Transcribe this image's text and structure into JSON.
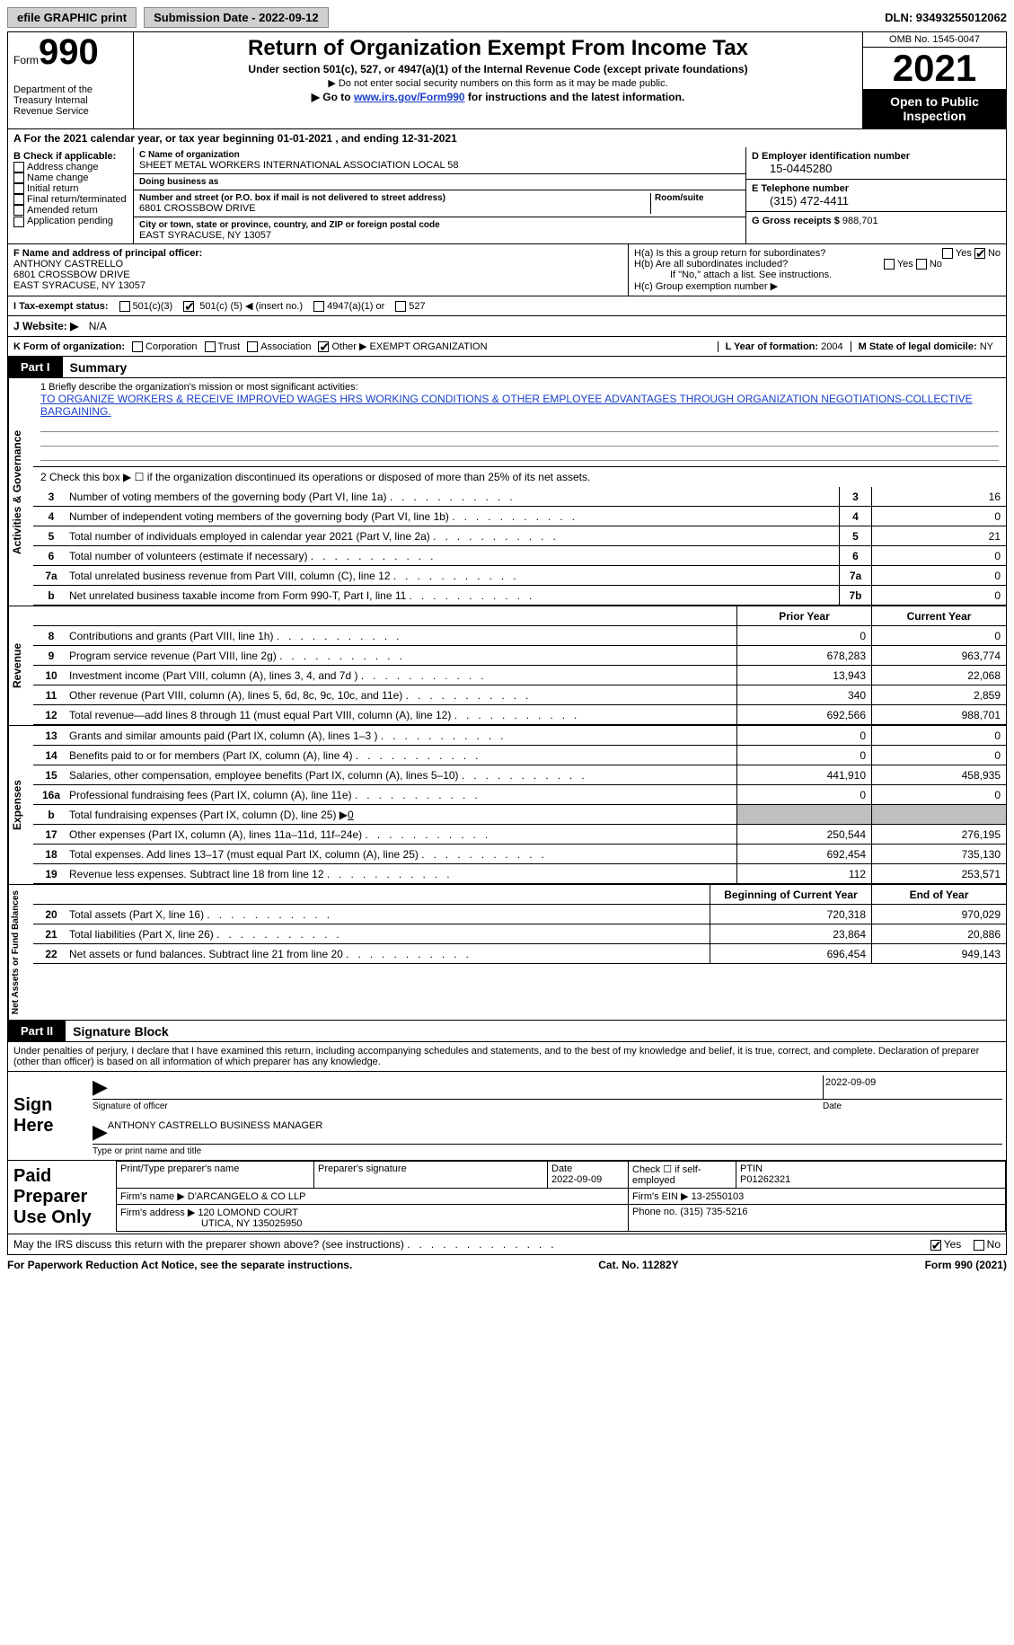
{
  "topbar": {
    "efile": "efile GRAPHIC print",
    "submission_label": "Submission Date - 2022-09-12",
    "dln": "DLN: 93493255012062"
  },
  "header": {
    "form_label": "Form",
    "form_num": "990",
    "dept": "Department of the Treasury\nInternal Revenue Service",
    "title": "Return of Organization Exempt From Income Tax",
    "sub": "Under section 501(c), 527, or 4947(a)(1) of the Internal Revenue Code (except private foundations)",
    "nosnn": "▶ Do not enter social security numbers on this form as it may be made public.",
    "goto_pre": "▶ Go to ",
    "goto_link": "www.irs.gov/Form990",
    "goto_post": " for instructions and the latest information.",
    "omb": "OMB No. 1545-0047",
    "year": "2021",
    "open": "Open to Public Inspection"
  },
  "row_a": "A For the 2021 calendar year, or tax year beginning 01-01-2021    , and ending 12-31-2021",
  "col_b": {
    "label": "B Check if applicable:",
    "opts": [
      "Address change",
      "Name change",
      "Initial return",
      "Final return/terminated",
      "Amended return",
      "Application pending"
    ]
  },
  "col_c": {
    "name_lbl": "C Name of organization",
    "name": "SHEET METAL WORKERS INTERNATIONAL ASSOCIATION LOCAL 58",
    "dba_lbl": "Doing business as",
    "dba": "",
    "addr_lbl": "Number and street (or P.O. box if mail is not delivered to street address)",
    "room_lbl": "Room/suite",
    "addr": "6801 CROSSBOW DRIVE",
    "city_lbl": "City or town, state or province, country, and ZIP or foreign postal code",
    "city": "EAST SYRACUSE, NY  13057"
  },
  "col_d": {
    "ein_lbl": "D Employer identification number",
    "ein": "15-0445280",
    "tel_lbl": "E Telephone number",
    "tel": "(315) 472-4411",
    "gross_lbl": "G Gross receipts $",
    "gross": "988,701"
  },
  "f": {
    "label": "F Name and address of principal officer:",
    "name": "ANTHONY CASTRELLO",
    "addr1": "6801 CROSSBOW DRIVE",
    "addr2": "EAST SYRACUSE, NY  13057"
  },
  "h": {
    "a_lbl": "H(a)  Is this a group return for subordinates?",
    "a_yes": "Yes",
    "a_no": "No",
    "b_lbl": "H(b)  Are all subordinates included?",
    "b_yes": "Yes",
    "b_no": "No",
    "b_note": "If \"No,\" attach a list. See instructions.",
    "c_lbl": "H(c)  Group exemption number ▶"
  },
  "status": {
    "label": "I   Tax-exempt status:",
    "c3": "501(c)(3)",
    "c5_pre": "501(c) (",
    "c5_num": "5",
    "c5_post": ") ◀ (insert no.)",
    "a1": "4947(a)(1) or",
    "s527": "527"
  },
  "j": {
    "label": "J   Website: ▶",
    "val": "N/A"
  },
  "k": {
    "label": "K Form of organization:",
    "corp": "Corporation",
    "trust": "Trust",
    "assoc": "Association",
    "other": "Other ▶",
    "other_val": "EXEMPT ORGANIZATION",
    "l_lbl": "L Year of formation:",
    "l_val": "2004",
    "m_lbl": "M State of legal domicile:",
    "m_val": "NY"
  },
  "parts": {
    "p1_tab": "Part I",
    "p1_title": "Summary",
    "p2_tab": "Part II",
    "p2_title": "Signature Block"
  },
  "vtabs": {
    "ag": "Activities & Governance",
    "rev": "Revenue",
    "exp": "Expenses",
    "net": "Net Assets or\nFund Balances"
  },
  "mission": {
    "label": "1   Briefly describe the organization's mission or most significant activities:",
    "text": "TO ORGANIZE WORKERS & RECEIVE IMPROVED WAGES HRS WORKING CONDITIONS & OTHER EMPLOYEE ADVANTAGES THROUGH ORGANIZATION NEGOTIATIONS-COLLECTIVE BARGAINING."
  },
  "line2": "2   Check this box ▶ ☐ if the organization discontinued its operations or disposed of more than 25% of its net assets.",
  "lines_ag": [
    {
      "n": "3",
      "d": "Number of voting members of the governing body (Part VI, line 1a)",
      "box": "3",
      "v": "16"
    },
    {
      "n": "4",
      "d": "Number of independent voting members of the governing body (Part VI, line 1b)",
      "box": "4",
      "v": "0"
    },
    {
      "n": "5",
      "d": "Total number of individuals employed in calendar year 2021 (Part V, line 2a)",
      "box": "5",
      "v": "21"
    },
    {
      "n": "6",
      "d": "Total number of volunteers (estimate if necessary)",
      "box": "6",
      "v": "0"
    },
    {
      "n": "7a",
      "d": "Total unrelated business revenue from Part VIII, column (C), line 12",
      "box": "7a",
      "v": "0"
    },
    {
      "n": " b",
      "d": "Net unrelated business taxable income from Form 990-T, Part I, line 11",
      "box": "7b",
      "v": "0"
    }
  ],
  "hdr_pycy": {
    "py": "Prior Year",
    "cy": "Current Year"
  },
  "lines_rev": [
    {
      "n": "8",
      "d": "Contributions and grants (Part VIII, line 1h)",
      "py": "0",
      "cy": "0"
    },
    {
      "n": "9",
      "d": "Program service revenue (Part VIII, line 2g)",
      "py": "678,283",
      "cy": "963,774"
    },
    {
      "n": "10",
      "d": "Investment income (Part VIII, column (A), lines 3, 4, and 7d )",
      "py": "13,943",
      "cy": "22,068"
    },
    {
      "n": "11",
      "d": "Other revenue (Part VIII, column (A), lines 5, 6d, 8c, 9c, 10c, and 11e)",
      "py": "340",
      "cy": "2,859"
    },
    {
      "n": "12",
      "d": "Total revenue—add lines 8 through 11 (must equal Part VIII, column (A), line 12)",
      "py": "692,566",
      "cy": "988,701"
    }
  ],
  "lines_exp": [
    {
      "n": "13",
      "d": "Grants and similar amounts paid (Part IX, column (A), lines 1–3 )",
      "py": "0",
      "cy": "0"
    },
    {
      "n": "14",
      "d": "Benefits paid to or for members (Part IX, column (A), line 4)",
      "py": "0",
      "cy": "0"
    },
    {
      "n": "15",
      "d": "Salaries, other compensation, employee benefits (Part IX, column (A), lines 5–10)",
      "py": "441,910",
      "cy": "458,935"
    },
    {
      "n": "16a",
      "d": "Professional fundraising fees (Part IX, column (A), line 11e)",
      "py": "0",
      "cy": "0"
    }
  ],
  "line16b": {
    "n": " b",
    "d": "Total fundraising expenses (Part IX, column (D), line 25) ▶",
    "v": "0"
  },
  "lines_exp2": [
    {
      "n": "17",
      "d": "Other expenses (Part IX, column (A), lines 11a–11d, 11f–24e)",
      "py": "250,544",
      "cy": "276,195"
    },
    {
      "n": "18",
      "d": "Total expenses. Add lines 13–17 (must equal Part IX, column (A), line 25)",
      "py": "692,454",
      "cy": "735,130"
    },
    {
      "n": "19",
      "d": "Revenue less expenses. Subtract line 18 from line 12",
      "py": "112",
      "cy": "253,571"
    }
  ],
  "hdr_net": {
    "py": "Beginning of Current Year",
    "cy": "End of Year"
  },
  "lines_net": [
    {
      "n": "20",
      "d": "Total assets (Part X, line 16)",
      "py": "720,318",
      "cy": "970,029"
    },
    {
      "n": "21",
      "d": "Total liabilities (Part X, line 26)",
      "py": "23,864",
      "cy": "20,886"
    },
    {
      "n": "22",
      "d": "Net assets or fund balances. Subtract line 21 from line 20",
      "py": "696,454",
      "cy": "949,143"
    }
  ],
  "penalties": "Under penalties of perjury, I declare that I have examined this return, including accompanying schedules and statements, and to the best of my knowledge and belief, it is true, correct, and complete. Declaration of preparer (other than officer) is based on all information of which preparer has any knowledge.",
  "sign": {
    "here": "Sign Here",
    "sig_lbl": "Signature of officer",
    "date": "2022-09-09",
    "date_lbl": "Date",
    "name": "ANTHONY CASTRELLO  BUSINESS MANAGER",
    "name_lbl": "Type or print name and title"
  },
  "prep": {
    "label": "Paid Preparer Use Only",
    "h_name": "Print/Type preparer's name",
    "h_sig": "Preparer's signature",
    "h_date": "Date",
    "date": "2022-09-09",
    "h_self": "Check ☐ if self-employed",
    "h_ptin": "PTIN",
    "ptin": "P01262321",
    "firm_lbl": "Firm's name    ▶",
    "firm": "D'ARCANGELO & CO LLP",
    "ein_lbl": "Firm's EIN ▶",
    "ein": "13-2550103",
    "addr_lbl": "Firm's address ▶",
    "addr1": "120 LOMOND COURT",
    "addr2": "UTICA, NY  135025950",
    "phone_lbl": "Phone no.",
    "phone": "(315) 735-5216"
  },
  "discuss": {
    "q": "May the IRS discuss this return with the preparer shown above? (see instructions)",
    "yes": "Yes",
    "no": "No"
  },
  "footer": {
    "left": "For Paperwork Reduction Act Notice, see the separate instructions.",
    "mid": "Cat. No. 11282Y",
    "right": "Form 990 (2021)"
  },
  "colors": {
    "link": "#1a3fcc",
    "shade": "#bfbfbf"
  }
}
